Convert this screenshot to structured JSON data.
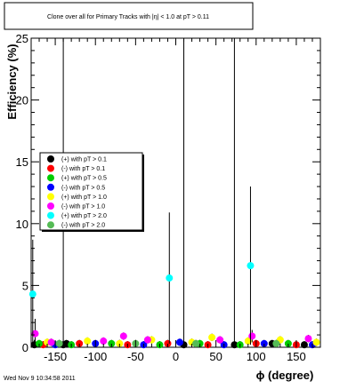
{
  "chart_data": {
    "type": "scatter",
    "title": "Clone  over all for Primary Tracks with |η| < 1.0 at pT > 0.11",
    "xlabel": "ϕ (degree)",
    "ylabel": "Efficiency (%)",
    "xlim": [
      -180,
      180
    ],
    "ylim": [
      0,
      25
    ],
    "x_ticks": [
      "-150",
      "-100",
      "-50",
      "0",
      "50",
      "100",
      "150"
    ],
    "x_tick_values": [
      -150,
      -100,
      -50,
      0,
      50,
      100,
      150
    ],
    "y_ticks": [
      "0",
      "5",
      "10",
      "15",
      "20",
      "25"
    ],
    "y_tick_values": [
      0,
      5,
      10,
      15,
      20,
      25
    ],
    "legend_position": "middle-left",
    "grid": false,
    "series": [
      {
        "name": "(+) with pT > 0.1",
        "color": "#000000",
        "points": [
          [
            -176,
            0.2,
            0.4
          ],
          [
            -140,
            0.2,
            25
          ],
          [
            -136,
            0.3,
            0.3
          ],
          [
            10,
            0.2,
            25
          ],
          [
            73,
            0.2,
            25
          ],
          [
            120,
            0.3,
            0.3
          ],
          [
            160,
            0.2,
            0.3
          ]
        ]
      },
      {
        "name": "(-) with pT > 0.1",
        "color": "#ff0000",
        "points": [
          [
            -165,
            0.2,
            0.3
          ],
          [
            -120,
            0.3,
            0.3
          ],
          [
            -60,
            0.2,
            0.3
          ],
          [
            -10,
            0.3,
            0.3
          ],
          [
            40,
            0.2,
            0.3
          ],
          [
            100,
            0.3,
            0.3
          ],
          [
            150,
            0.2,
            0.3
          ]
        ]
      },
      {
        "name": "(+) with pT > 0.5",
        "color": "#00cc00",
        "points": [
          [
            -170,
            0.3,
            0.3
          ],
          [
            -130,
            0.2,
            0.3
          ],
          [
            -80,
            0.3,
            0.3
          ],
          [
            -20,
            0.2,
            0.3
          ],
          [
            30,
            0.3,
            0.3
          ],
          [
            80,
            0.2,
            0.3
          ],
          [
            140,
            0.3,
            0.3
          ]
        ]
      },
      {
        "name": "(-) with pT > 0.5",
        "color": "#0000ff",
        "points": [
          [
            -150,
            0.2,
            0.3
          ],
          [
            -100,
            0.3,
            0.3
          ],
          [
            -40,
            0.2,
            0.3
          ],
          [
            5,
            0.4,
            0.3
          ],
          [
            60,
            0.2,
            0.3
          ],
          [
            110,
            0.3,
            0.3
          ],
          [
            170,
            0.2,
            0.3
          ]
        ]
      },
      {
        "name": "(+) with pT > 1.0",
        "color": "#ffff00",
        "points": [
          [
            -160,
            0.4,
            0.3
          ],
          [
            -110,
            0.5,
            0.3
          ],
          [
            -70,
            0.3,
            0.3
          ],
          [
            -30,
            0.6,
            0.3
          ],
          [
            20,
            0.4,
            0.3
          ],
          [
            45,
            0.8,
            0.3
          ],
          [
            90,
            0.5,
            0.3
          ],
          [
            130,
            0.6,
            0.3
          ],
          [
            175,
            0.4,
            0.3
          ]
        ]
      },
      {
        "name": "(-) with pT > 1.0",
        "color": "#ff00ff",
        "points": [
          [
            -175,
            1.1,
            1.2
          ],
          [
            -155,
            0.4,
            0.3
          ],
          [
            -90,
            0.5,
            0.3
          ],
          [
            -65,
            0.9,
            0.3
          ],
          [
            -35,
            0.6,
            0.3
          ],
          [
            55,
            0.6,
            0.3
          ],
          [
            95,
            0.9,
            0.5
          ],
          [
            165,
            0.7,
            0.3
          ]
        ]
      },
      {
        "name": "(+) with pT > 2.0",
        "color": "#00ffff",
        "points": [
          [
            -178,
            4.3,
            4.4
          ],
          [
            -8,
            5.6,
            5.3
          ],
          [
            93,
            6.6,
            6.4
          ]
        ]
      },
      {
        "name": "(-) with pT > 2.0",
        "color": "#55bb55",
        "points": [
          [
            -145,
            0.3,
            0.3
          ],
          [
            -50,
            0.3,
            0.3
          ],
          [
            25,
            0.3,
            0.3
          ],
          [
            125,
            0.3,
            0.3
          ]
        ]
      }
    ]
  },
  "footer": {
    "timestamp": "Wed Nov  9 10:34:58 2011"
  }
}
